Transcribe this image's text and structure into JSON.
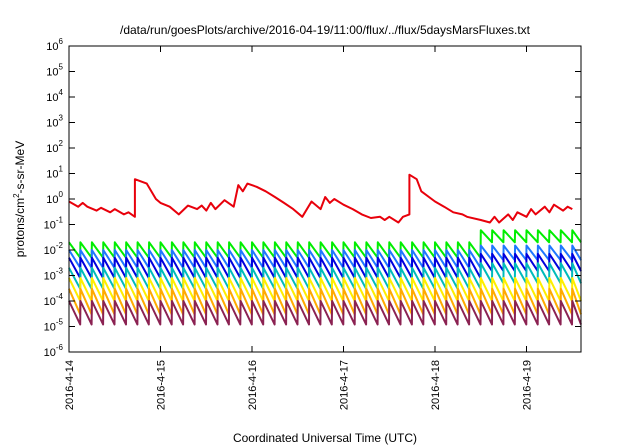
{
  "chart_data": {
    "type": "line",
    "title": "/data/run/goesPlots/archive/2016-04-19/11:00/flux/../flux/5daysMarsFluxes.txt",
    "xlabel": "Coordinated Universal Time (UTC)",
    "ylabel": {
      "base": "protons/cm",
      "sup": "2",
      "rest": "-s-sr-MeV"
    },
    "yscale": "log",
    "ylim": [
      1e-06,
      1000000.0
    ],
    "xlim": [
      "2016-04-14",
      "2016-04-19 12:00"
    ],
    "x_tick_labels": [
      "2016-4-14",
      "2016-4-15",
      "2016-4-16",
      "2016-4-17",
      "2016-4-18",
      "2016-4-19"
    ],
    "y_tick_labels": [
      {
        "base": "10",
        "exp": "-6"
      },
      {
        "base": "10",
        "exp": "-5"
      },
      {
        "base": "10",
        "exp": "-4"
      },
      {
        "base": "10",
        "exp": "-3"
      },
      {
        "base": "10",
        "exp": "-2"
      },
      {
        "base": "10",
        "exp": "-1"
      },
      {
        "base": "10",
        "exp": "0"
      },
      {
        "base": "10",
        "exp": "1"
      },
      {
        "base": "10",
        "exp": "2"
      },
      {
        "base": "10",
        "exp": "3"
      },
      {
        "base": "10",
        "exp": "4"
      },
      {
        "base": "10",
        "exp": "5"
      },
      {
        "base": "10",
        "exp": "6"
      }
    ],
    "grid": false,
    "legend": "none",
    "series": [
      {
        "color": "#e8000b",
        "x_days": [
          0.0,
          0.1,
          0.15,
          0.2,
          0.3,
          0.35,
          0.45,
          0.5,
          0.6,
          0.65,
          0.72,
          0.72,
          0.85,
          0.95,
          1.0,
          1.1,
          1.2,
          1.3,
          1.4,
          1.45,
          1.5,
          1.55,
          1.6,
          1.7,
          1.8,
          1.85,
          1.9,
          1.95,
          2.05,
          2.15,
          2.25,
          2.35,
          2.45,
          2.55,
          2.65,
          2.75,
          2.8,
          2.85,
          2.9,
          3.0,
          3.1,
          3.2,
          3.3,
          3.4,
          3.45,
          3.5,
          3.6,
          3.65,
          3.72,
          3.72,
          3.8,
          3.85,
          4.0,
          4.1,
          4.2,
          4.3,
          4.35,
          4.5,
          4.6,
          4.65,
          4.7,
          4.8,
          4.85,
          4.9,
          5.0,
          5.05,
          5.1,
          5.2,
          5.25,
          5.3,
          5.4,
          5.45,
          5.5
        ],
        "values": [
          0.8,
          0.5,
          0.7,
          0.5,
          0.35,
          0.45,
          0.3,
          0.4,
          0.25,
          0.3,
          0.2,
          6.0,
          4.0,
          1.0,
          0.7,
          0.5,
          0.25,
          0.55,
          0.4,
          0.55,
          0.35,
          0.7,
          0.4,
          0.9,
          0.5,
          3.5,
          2.0,
          4.0,
          3.0,
          2.0,
          1.2,
          0.7,
          0.4,
          0.2,
          0.8,
          0.4,
          1.2,
          0.7,
          1.0,
          0.6,
          0.4,
          0.25,
          0.18,
          0.2,
          0.15,
          0.2,
          0.12,
          0.2,
          0.25,
          9.0,
          6.0,
          2.0,
          0.8,
          0.5,
          0.3,
          0.25,
          0.2,
          0.15,
          0.12,
          0.2,
          0.12,
          0.25,
          0.15,
          0.3,
          0.2,
          0.4,
          0.25,
          0.5,
          0.3,
          0.6,
          0.35,
          0.5,
          0.4
        ]
      },
      {
        "color": "#00ee00",
        "sawtooth": {
          "low": 0.005,
          "high": 0.02
        },
        "late": {
          "from_day": 4.45,
          "low": 0.02,
          "high": 0.06
        }
      },
      {
        "color": "#1f77ff",
        "sawtooth": {
          "low": 0.002,
          "high": 0.01
        },
        "late": {
          "from_day": 4.5,
          "low": 0.004,
          "high": 0.015
        }
      },
      {
        "color": "#0000dd",
        "sawtooth": {
          "low": 0.0008,
          "high": 0.005
        },
        "late": {
          "from_day": 4.5,
          "low": 0.0015,
          "high": 0.007
        }
      },
      {
        "color": "#00bbbb",
        "sawtooth": {
          "low": 0.0003,
          "high": 0.002
        },
        "late": {
          "from_day": 4.5,
          "low": 0.0005,
          "high": 0.003
        }
      },
      {
        "color": "#ffee00",
        "sawtooth": {
          "low": 0.0001,
          "high": 0.0008
        }
      },
      {
        "color": "#ffaa00",
        "sawtooth": {
          "low": 3e-05,
          "high": 0.0003
        }
      },
      {
        "color": "#8b2252",
        "sawtooth": {
          "low": 1.2e-05,
          "high": 0.0001
        }
      }
    ],
    "sawtooth_period_days": 0.125
  }
}
